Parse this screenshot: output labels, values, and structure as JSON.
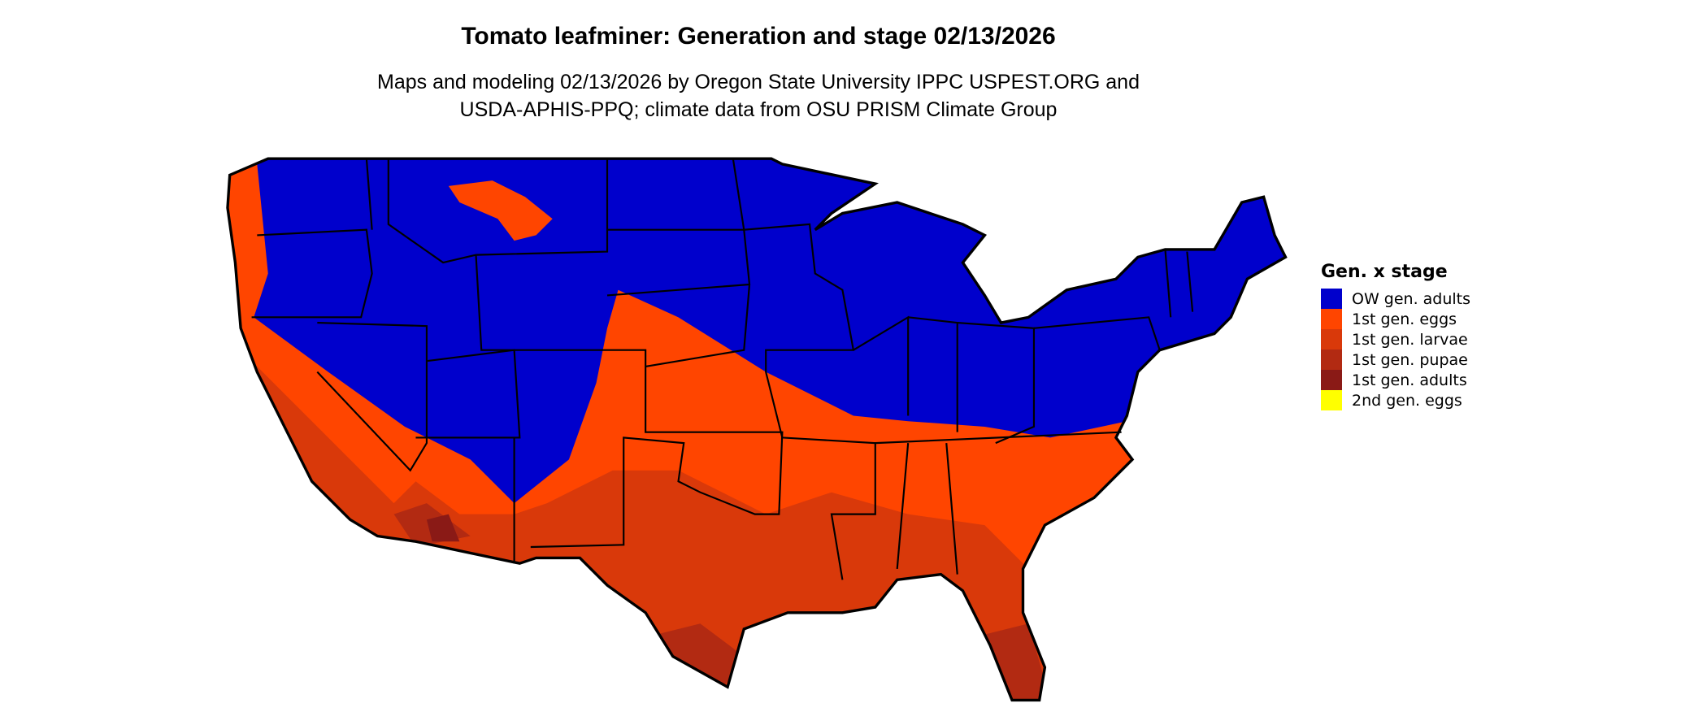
{
  "title": "Tomato leafminer: Generation and stage 02/13/2026",
  "subtitle_line1": "Maps and modeling 02/13/2026 by Oregon State University IPPC USPEST.ORG and",
  "subtitle_line2": "USDA-APHIS-PPQ; climate data from OSU PRISM Climate Group",
  "legend": {
    "title": "Gen. x stage",
    "items": [
      {
        "label": "OW gen. adults",
        "color": "#0000CC"
      },
      {
        "label": "1st gen. eggs",
        "color": "#FF4500"
      },
      {
        "label": "1st gen. larvae",
        "color": "#D9390A"
      },
      {
        "label": "1st gen. pupae",
        "color": "#B22A12"
      },
      {
        "label": "1st gen. adults",
        "color": "#8A1A16"
      },
      {
        "label": "2nd gen. eggs",
        "color": "#FFFF00"
      }
    ]
  },
  "map": {
    "region": "Contiguous United States",
    "border_color": "#000000"
  }
}
